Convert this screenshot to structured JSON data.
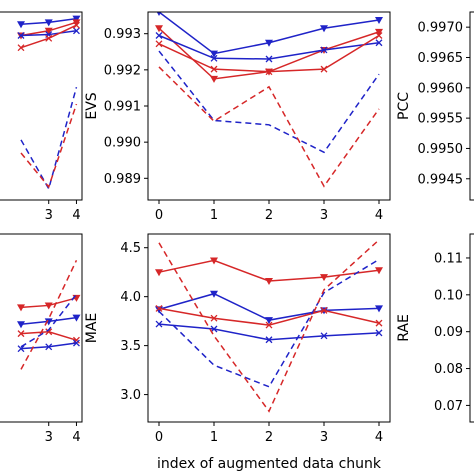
{
  "colors": {
    "red": "#d62728",
    "blue": "#1f23c8"
  },
  "chart_data": [
    {
      "panel": "top-left",
      "type": "line",
      "title": "",
      "ylabel": "",
      "xlabel": "",
      "x": [
        0,
        1,
        2,
        3,
        4
      ],
      "xlim": [
        -0.2,
        4.2
      ],
      "xticks": [
        "3",
        "4"
      ],
      "ylim": [
        0,
        1
      ],
      "yticks": [],
      "series": [
        {
          "color": "#1f23c8",
          "style": "solid",
          "marker": "tri_down",
          "values": [
            null,
            null,
            0.935,
            0.945,
            0.965
          ]
        },
        {
          "color": "#d62728",
          "style": "solid",
          "marker": "tri_down",
          "values": [
            null,
            null,
            0.875,
            0.9,
            0.945
          ]
        },
        {
          "color": "#1f23c8",
          "style": "solid",
          "marker": "x",
          "values": [
            null,
            null,
            0.875,
            0.88,
            0.9
          ]
        },
        {
          "color": "#d62728",
          "style": "solid",
          "marker": "x",
          "values": [
            null,
            null,
            0.81,
            0.86,
            0.93
          ]
        },
        {
          "color": "#1f23c8",
          "style": "dashed",
          "marker": "none",
          "values": [
            null,
            null,
            0.32,
            0.06,
            0.6
          ]
        },
        {
          "color": "#d62728",
          "style": "dashed",
          "marker": "none",
          "values": [
            null,
            null,
            0.25,
            0.07,
            0.51
          ]
        }
      ]
    },
    {
      "panel": "top-middle",
      "type": "line",
      "title": "",
      "ylabel": "EVS",
      "xlabel": "",
      "x": [
        0,
        1,
        2,
        3,
        4
      ],
      "xlim": [
        -0.2,
        4.2
      ],
      "xticks": [
        "0",
        "1",
        "2",
        "3",
        "4"
      ],
      "ylim": [
        0.9884,
        0.9936
      ],
      "yticks": [
        0.989,
        0.99,
        0.991,
        0.992,
        0.993
      ],
      "ytick_labels": [
        "0.989",
        "0.990",
        "0.991",
        "0.992",
        "0.993"
      ],
      "series": [
        {
          "color": "#1f23c8",
          "style": "solid",
          "marker": "tri_down",
          "values": [
            0.9936,
            0.99245,
            0.99275,
            0.99315,
            0.99338
          ]
        },
        {
          "color": "#d62728",
          "style": "solid",
          "marker": "tri_down",
          "values": [
            0.99315,
            0.99175,
            0.99195,
            0.99255,
            0.99305
          ]
        },
        {
          "color": "#1f23c8",
          "style": "solid",
          "marker": "x",
          "values": [
            0.99295,
            0.99232,
            0.9923,
            0.99255,
            0.99275
          ]
        },
        {
          "color": "#d62728",
          "style": "solid",
          "marker": "x",
          "values": [
            0.99272,
            0.99202,
            0.99195,
            0.99202,
            0.99295
          ]
        },
        {
          "color": "#1f23c8",
          "style": "dashed",
          "marker": "none",
          "values": [
            0.99252,
            0.9906,
            0.99048,
            0.98972,
            0.99188
          ]
        },
        {
          "color": "#d62728",
          "style": "dashed",
          "marker": "none",
          "values": [
            0.99208,
            0.99058,
            0.99153,
            0.98878,
            0.99092
          ]
        }
      ]
    },
    {
      "panel": "top-right",
      "type": "line",
      "title": "",
      "ylabel": "PCC",
      "xlabel": "",
      "x": [
        0,
        1,
        2,
        3,
        4
      ],
      "xlim": [
        -0.2,
        4.2
      ],
      "xticks": [],
      "ylim": [
        0.99415,
        0.99725
      ],
      "yticks": [
        0.9945,
        0.995,
        0.9955,
        0.996,
        0.9965,
        0.997
      ],
      "ytick_labels": [
        "0.9945",
        "0.9950",
        "0.9955",
        "0.9960",
        "0.9965",
        "0.9970"
      ],
      "series": []
    },
    {
      "panel": "bottom-left",
      "type": "line",
      "title": "",
      "ylabel": "",
      "xlabel": "",
      "x": [
        0,
        1,
        2,
        3,
        4
      ],
      "xlim": [
        -0.2,
        4.2
      ],
      "xticks": [
        "3",
        "4"
      ],
      "ylim": [
        0,
        1
      ],
      "yticks": [],
      "series": [
        {
          "color": "#d62728",
          "style": "solid",
          "marker": "tri_down",
          "values": [
            null,
            null,
            0.61,
            0.62,
            0.66
          ]
        },
        {
          "color": "#1f23c8",
          "style": "solid",
          "marker": "tri_down",
          "values": [
            null,
            null,
            0.52,
            0.535,
            0.555
          ]
        },
        {
          "color": "#d62728",
          "style": "solid",
          "marker": "x",
          "values": [
            null,
            null,
            0.47,
            0.48,
            0.435
          ]
        },
        {
          "color": "#1f23c8",
          "style": "solid",
          "marker": "x",
          "values": [
            null,
            null,
            0.39,
            0.4,
            0.42
          ]
        },
        {
          "color": "#1f23c8",
          "style": "dashed",
          "marker": "none",
          "values": [
            null,
            null,
            0.4,
            0.49,
            0.68
          ]
        },
        {
          "color": "#d62728",
          "style": "dashed",
          "marker": "none",
          "values": [
            null,
            null,
            0.28,
            0.55,
            0.86
          ]
        }
      ]
    },
    {
      "panel": "bottom-middle",
      "type": "line",
      "title": "",
      "ylabel": "MAE",
      "xlabel": "index of augmented data chunk",
      "x": [
        0,
        1,
        2,
        3,
        4
      ],
      "xlim": [
        -0.2,
        4.2
      ],
      "xticks": [
        "0",
        "1",
        "2",
        "3",
        "4"
      ],
      "ylim": [
        2.72,
        4.64
      ],
      "yticks": [
        3.0,
        3.5,
        4.0,
        4.5
      ],
      "ytick_labels": [
        "3.0",
        "3.5",
        "4.0",
        "4.5"
      ],
      "series": [
        {
          "color": "#d62728",
          "style": "solid",
          "marker": "tri_down",
          "values": [
            4.25,
            4.37,
            4.16,
            4.2,
            4.27
          ]
        },
        {
          "color": "#1f23c8",
          "style": "solid",
          "marker": "tri_down",
          "values": [
            3.87,
            4.03,
            3.76,
            3.86,
            3.88
          ]
        },
        {
          "color": "#d62728",
          "style": "solid",
          "marker": "x",
          "values": [
            3.88,
            3.78,
            3.71,
            3.86,
            3.73
          ]
        },
        {
          "color": "#1f23c8",
          "style": "solid",
          "marker": "x",
          "values": [
            3.72,
            3.67,
            3.56,
            3.6,
            3.63
          ]
        },
        {
          "color": "#1f23c8",
          "style": "dashed",
          "marker": "none",
          "values": [
            3.85,
            3.3,
            3.08,
            4.04,
            4.38
          ]
        },
        {
          "color": "#d62728",
          "style": "dashed",
          "marker": "none",
          "values": [
            4.55,
            3.6,
            2.83,
            4.07,
            4.58
          ]
        }
      ]
    },
    {
      "panel": "bottom-right",
      "type": "line",
      "title": "",
      "ylabel": "RAE",
      "xlabel": "",
      "x": [
        0,
        1,
        2,
        3,
        4
      ],
      "xlim": [
        -0.2,
        4.2
      ],
      "xticks": [],
      "ylim": [
        0.0655,
        0.1165
      ],
      "yticks": [
        0.07,
        0.08,
        0.09,
        0.1,
        0.11
      ],
      "ytick_labels": [
        "0.07",
        "0.08",
        "0.09",
        "0.10",
        "0.11"
      ],
      "series": []
    }
  ]
}
